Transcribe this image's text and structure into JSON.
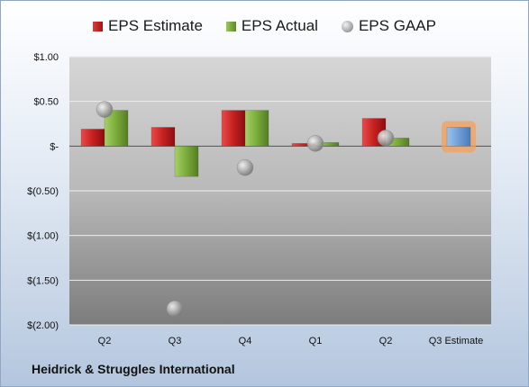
{
  "legend": {
    "estimate": "EPS Estimate",
    "actual": "EPS Actual",
    "gaap": "EPS GAAP"
  },
  "company": "Heidrick & Struggles International",
  "colors": {
    "estimate": "#c42020",
    "actual": "#7aab3c",
    "gaap": "#a0a0a0",
    "forecast": "#6f9ed6",
    "highlight": "#f5a05a"
  },
  "chart_data": {
    "type": "bar",
    "categories": [
      "Q2",
      "Q3",
      "Q4",
      "Q1",
      "Q2",
      "Q3 Estimate"
    ],
    "series": [
      {
        "name": "EPS Estimate",
        "values": [
          0.19,
          0.21,
          0.4,
          0.03,
          0.31,
          0.21
        ]
      },
      {
        "name": "EPS Actual",
        "values": [
          0.4,
          -0.34,
          0.4,
          0.04,
          0.09,
          null
        ]
      },
      {
        "name": "EPS GAAP",
        "values": [
          0.41,
          -1.82,
          -0.24,
          0.03,
          0.09,
          null
        ]
      }
    ],
    "yticks": [
      1.0,
      0.5,
      0,
      -0.5,
      -1.0,
      -1.5,
      -2.0
    ],
    "ytick_labels": [
      "$1.00",
      "$0.50",
      "$-",
      "$(0.50)",
      "$(1.00)",
      "$(1.50)",
      "$(2.00)"
    ],
    "ylim": [
      -2.0,
      1.0
    ],
    "legend_position": "top"
  }
}
